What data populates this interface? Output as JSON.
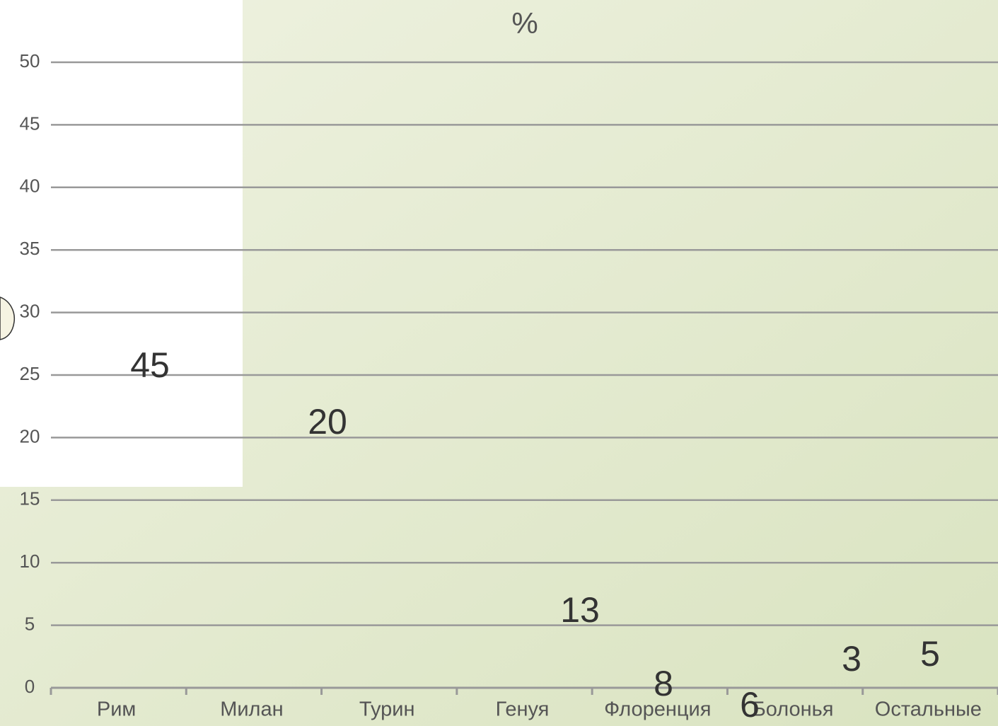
{
  "chart_data": {
    "type": "bar",
    "title": "%",
    "categories": [
      "Рим",
      "Милан",
      "Турин",
      "Генуя",
      "Флоренция",
      "Болонья",
      "Остальные"
    ],
    "values": [
      45,
      20,
      13,
      8,
      6,
      3,
      5
    ],
    "ylim": [
      0,
      50
    ],
    "yticks": [
      0,
      5,
      10,
      15,
      20,
      25,
      30,
      35,
      40,
      45,
      50
    ],
    "grid": true
  }
}
